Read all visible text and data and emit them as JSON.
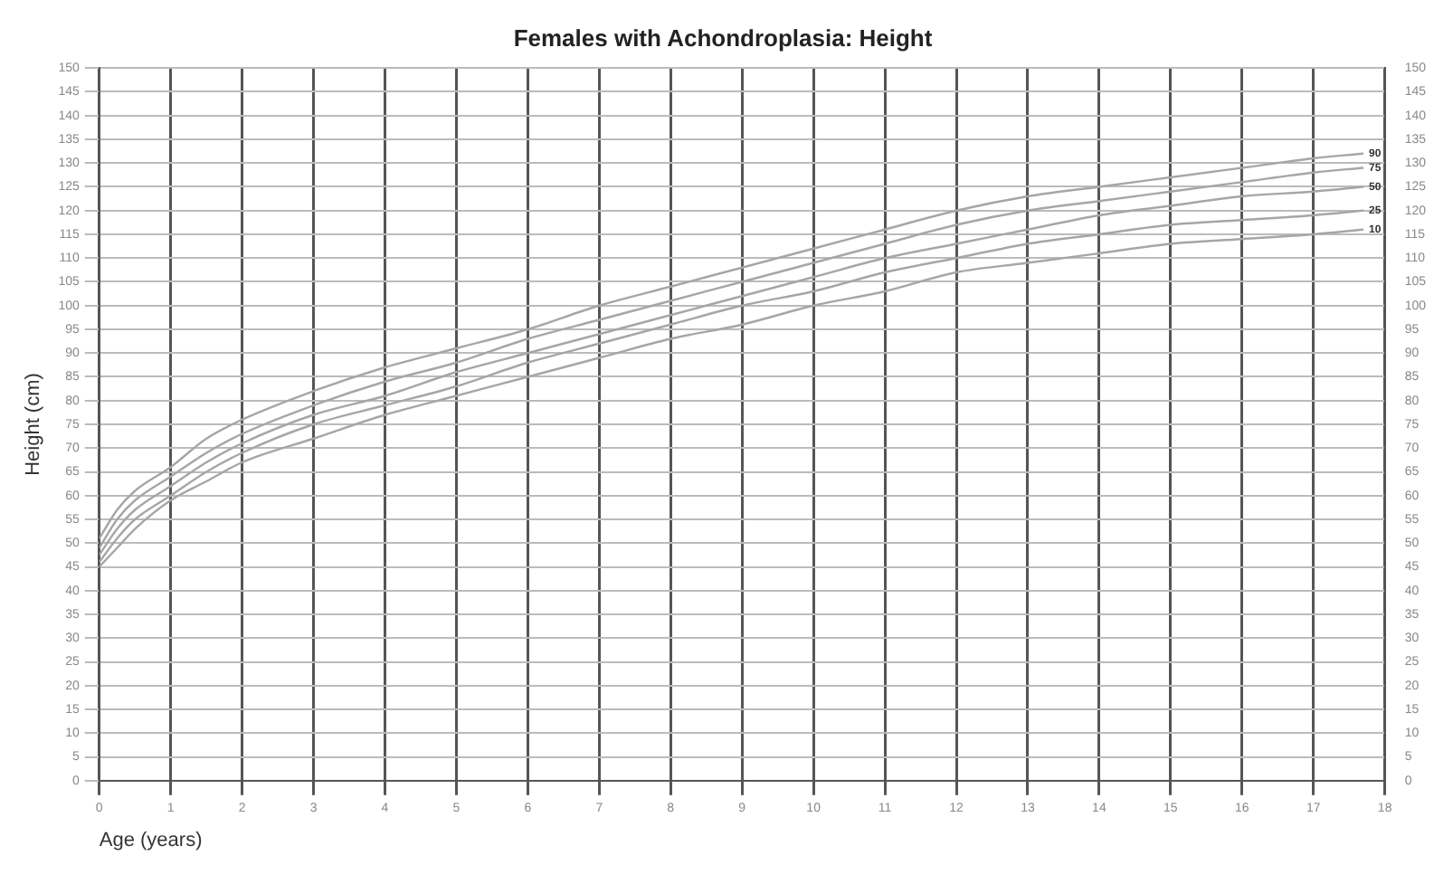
{
  "chart_data": {
    "type": "line",
    "title": "Females with Achondroplasia: Height",
    "xlabel": "Age (years)",
    "ylabel": "Height (cm)",
    "x": [
      0,
      0.25,
      0.5,
      1,
      1.5,
      2,
      3,
      4,
      5,
      6,
      7,
      8,
      9,
      10,
      11,
      12,
      13,
      14,
      15,
      16,
      17,
      17.7
    ],
    "series": [
      {
        "name": "90",
        "color": "#a6a6a6",
        "values": [
          51,
          57,
          61,
          66,
          72,
          76,
          82,
          87,
          91,
          95,
          100,
          104,
          108,
          112,
          116,
          120,
          123,
          125,
          127,
          129,
          131,
          132
        ]
      },
      {
        "name": "75",
        "color": "#a6a6a6",
        "values": [
          49,
          55,
          59,
          64,
          69,
          73,
          79,
          84,
          88,
          93,
          97,
          101,
          105,
          109,
          113,
          117,
          120,
          122,
          124,
          126,
          128,
          129
        ]
      },
      {
        "name": "50",
        "color": "#a6a6a6",
        "values": [
          47.5,
          53,
          57,
          62,
          67,
          71,
          77,
          81,
          86,
          90,
          94,
          98,
          102,
          106,
          110,
          113,
          116,
          119,
          121,
          123,
          124,
          125
        ]
      },
      {
        "name": "25",
        "color": "#a6a6a6",
        "values": [
          46,
          51,
          55,
          60,
          65,
          69,
          75,
          79,
          83,
          88,
          92,
          96,
          100,
          103,
          107,
          110,
          113,
          115,
          117,
          118,
          119,
          120
        ]
      },
      {
        "name": "10",
        "color": "#a6a6a6",
        "values": [
          45,
          49,
          53,
          59,
          63,
          67,
          72,
          77,
          81,
          85,
          89,
          93,
          96,
          100,
          103,
          107,
          109,
          111,
          113,
          114,
          115,
          116
        ]
      }
    ],
    "xlim": [
      0,
      18
    ],
    "xticks": [
      0,
      1,
      2,
      3,
      4,
      5,
      6,
      7,
      8,
      9,
      10,
      11,
      12,
      13,
      14,
      15,
      16,
      17,
      18
    ],
    "ylim": [
      0,
      150
    ],
    "yticks": [
      0,
      5,
      10,
      15,
      20,
      25,
      30,
      35,
      40,
      45,
      50,
      55,
      60,
      65,
      70,
      75,
      80,
      85,
      90,
      95,
      100,
      105,
      110,
      115,
      120,
      125,
      130,
      135,
      140,
      145,
      150
    ],
    "y2lim": [
      0,
      150
    ],
    "y2ticks": [
      0,
      5,
      10,
      15,
      20,
      25,
      30,
      35,
      40,
      45,
      50,
      55,
      60,
      65,
      70,
      75,
      80,
      85,
      90,
      95,
      100,
      105,
      110,
      115,
      120,
      125,
      130,
      135,
      140,
      145,
      150
    ],
    "grid": true,
    "legend": false,
    "marker": "none",
    "line_style": "solid"
  }
}
